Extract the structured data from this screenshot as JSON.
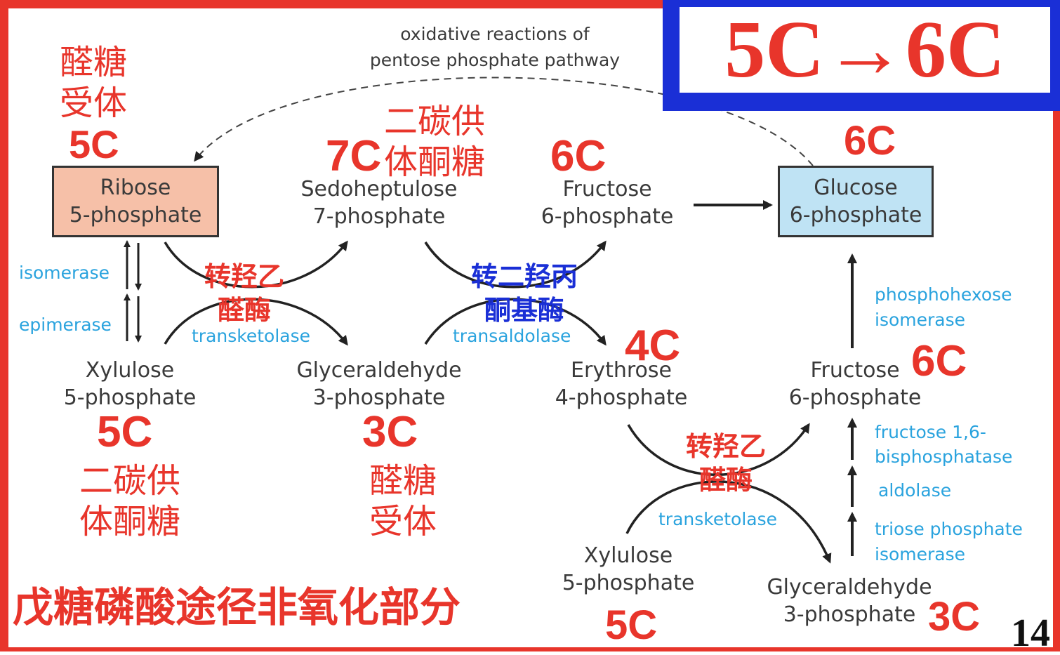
{
  "slide": {
    "title_badge": "5C→6C",
    "page_number": "14",
    "footer_title": "戊糖磷酸途径非氧化部分"
  },
  "diagram": {
    "top_note_1": "oxidative reactions of",
    "top_note_2": "pentose phosphate pathway",
    "ribose_1": "Ribose",
    "ribose_2": "5-phosphate",
    "sedo_1": "Sedoheptulose",
    "sedo_2": "7-phosphate",
    "fru_top_1": "Fructose",
    "fru_top_2": "6-phosphate",
    "glucose_1": "Glucose",
    "glucose_2": "6-phosphate",
    "xyl_left_1": "Xylulose",
    "xyl_left_2": "5-phosphate",
    "gap_mid_1": "Glyceraldehyde",
    "gap_mid_2": "3-phosphate",
    "ery_1": "Erythrose",
    "ery_2": "4-phosphate",
    "fru_right_1": "Fructose",
    "fru_right_2": "6-phosphate",
    "xyl_bottom_1": "Xylulose",
    "xyl_bottom_2": "5-phosphate",
    "gap_right_1": "Glyceraldehyde",
    "gap_right_2": "3-phosphate",
    "enzymes": {
      "isomerase": "isomerase",
      "epimerase": "epimerase",
      "transketolase_1": "transketolase",
      "transaldolase": "transaldolase",
      "phosphohexose_1": "phosphohexose",
      "phosphohexose_2": "isomerase",
      "fbpase_1": "fructose 1,6-",
      "fbpase_2": "bisphosphatase",
      "aldolase": "aldolase",
      "tpi_1": "triose phosphate",
      "tpi_2": "isomerase",
      "transketolase_2": "transketolase"
    }
  },
  "annotations": {
    "aldose_acceptor_1a": "醛糖",
    "aldose_acceptor_1b": "受体",
    "c_ribose": "5C",
    "c_sedo": "7C",
    "ketose_donor_1a": "二碳供",
    "ketose_donor_1b": "体酮糖",
    "c_fru_top": "6C",
    "c_glucose": "6C",
    "transketolase_cn_1a": "转羟乙",
    "transketolase_cn_1b": "醛酶",
    "transaldolase_cn_a": "转二羟丙",
    "transaldolase_cn_b": "酮基酶",
    "c_ery": "4C",
    "c_fru_right": "6C",
    "c_xyl_left": "5C",
    "c_gap_mid": "3C",
    "ketose_donor_2a": "二碳供",
    "ketose_donor_2b": "体酮糖",
    "aldose_acceptor_2a": "醛糖",
    "aldose_acceptor_2b": "受体",
    "transketolase_cn_2a": "转羟乙",
    "transketolase_cn_2b": "醛酶",
    "c_xyl_bottom": "5C",
    "c_gap_right": "3C"
  },
  "colors": {
    "frame_red": "#e8352b",
    "badge_blue": "#1a2fd6",
    "ribose_fill": "#f6c0a8",
    "glucose_fill": "#bfe3f4",
    "enzyme_blue": "#2aa3de"
  }
}
